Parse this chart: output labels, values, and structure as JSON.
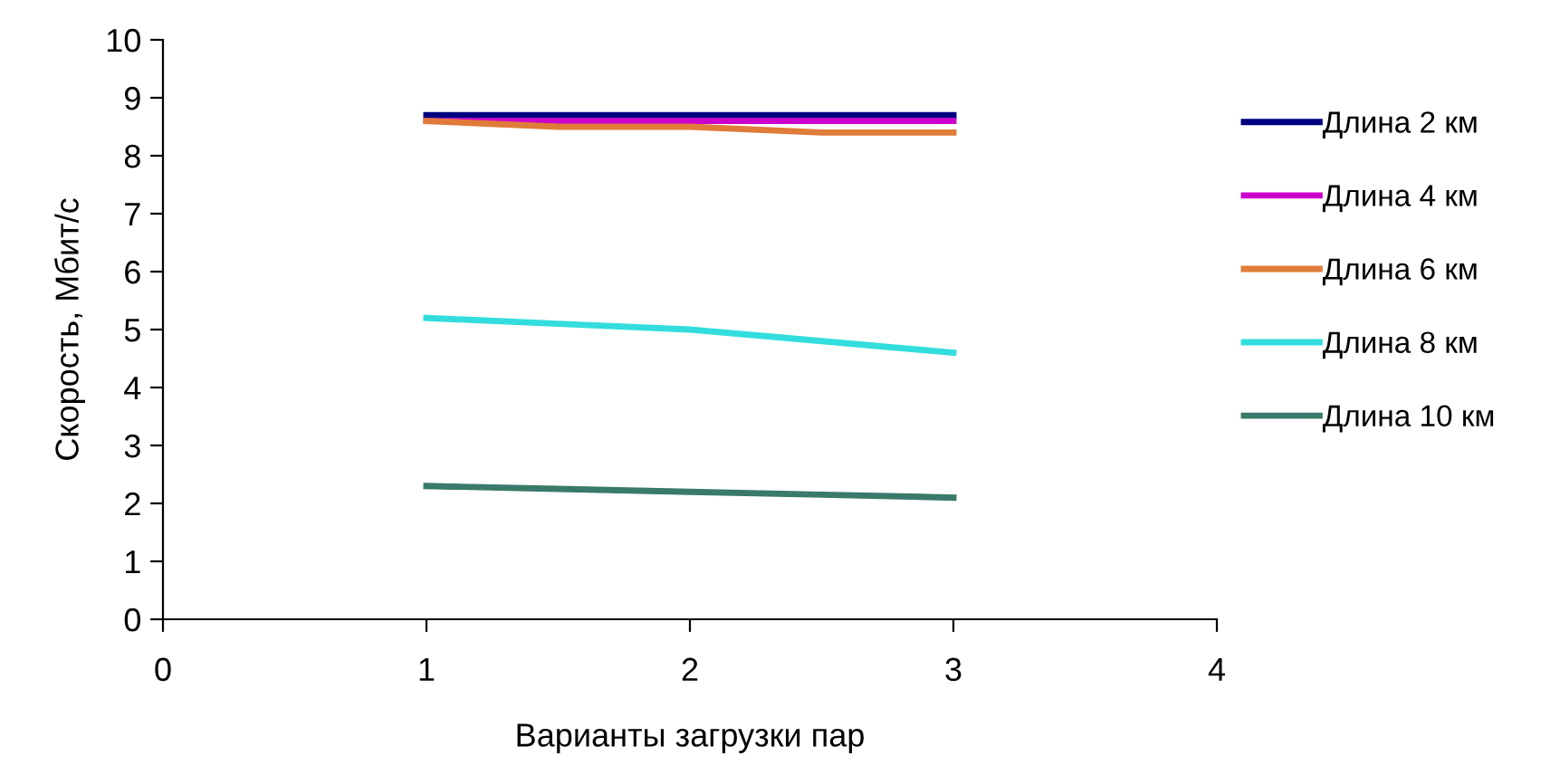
{
  "chart_data": {
    "type": "line",
    "xlabel": "Варианты загрузки пар",
    "ylabel": "Скорость, Мбит/с",
    "x": [
      1,
      1.5,
      2,
      2.5,
      3
    ],
    "series": [
      {
        "name": "Длина 2 км",
        "color": "#000080",
        "values": [
          8.7,
          8.7,
          8.7,
          8.7,
          8.7
        ]
      },
      {
        "name": "Длина 4 км",
        "color": "#cc00cc",
        "values": [
          8.6,
          8.6,
          8.6,
          8.6,
          8.6
        ]
      },
      {
        "name": "Длина 6 км",
        "color": "#e07b39",
        "values": [
          8.6,
          8.5,
          8.5,
          8.4,
          8.4
        ]
      },
      {
        "name": "Длина 8 км",
        "color": "#33dddd",
        "values": [
          5.2,
          5.1,
          5.0,
          4.8,
          4.6
        ]
      },
      {
        "name": "Длина 10 км",
        "color": "#3a7a6a",
        "values": [
          2.3,
          2.25,
          2.2,
          2.15,
          2.1
        ]
      }
    ],
    "xlim": [
      0,
      4
    ],
    "xticks": [
      0,
      1,
      2,
      3,
      4
    ],
    "ylim": [
      0,
      10
    ],
    "yticks": [
      0,
      1,
      2,
      3,
      4,
      5,
      6,
      7,
      8,
      9,
      10
    ],
    "grid": false,
    "legend": "right",
    "marker": "none",
    "line_style": "solid"
  }
}
